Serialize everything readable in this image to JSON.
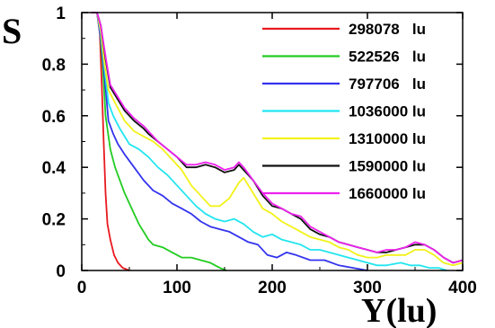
{
  "chart_data": {
    "type": "line",
    "title": "",
    "xlabel": "Y(lu)",
    "ylabel": "S",
    "xlim": [
      0,
      400
    ],
    "ylim": [
      0,
      1
    ],
    "x_ticks": [
      "0",
      "100",
      "200",
      "300",
      "400"
    ],
    "y_ticks": [
      "0",
      "0.2",
      "0.4",
      "0.6",
      "0.8",
      "1"
    ],
    "legend_position": "top-right",
    "grid": false,
    "series": [
      {
        "name": "298078   lu",
        "color": "#e8191f",
        "points": [
          [
            10,
            1
          ],
          [
            16,
            1
          ],
          [
            19,
            0.92
          ],
          [
            21,
            0.72
          ],
          [
            23,
            0.5
          ],
          [
            25,
            0.3
          ],
          [
            27,
            0.18
          ],
          [
            30,
            0.12
          ],
          [
            34,
            0.06
          ],
          [
            38,
            0.03
          ],
          [
            43,
            0.01
          ],
          [
            50,
            0
          ]
        ]
      },
      {
        "name": "522526   lu",
        "color": "#22cc22",
        "points": [
          [
            10,
            1
          ],
          [
            16,
            1
          ],
          [
            19,
            0.93
          ],
          [
            22,
            0.8
          ],
          [
            25,
            0.6
          ],
          [
            30,
            0.47
          ],
          [
            35,
            0.4
          ],
          [
            40,
            0.35
          ],
          [
            45,
            0.3
          ],
          [
            50,
            0.26
          ],
          [
            55,
            0.22
          ],
          [
            60,
            0.18
          ],
          [
            65,
            0.15
          ],
          [
            70,
            0.12
          ],
          [
            75,
            0.1
          ],
          [
            85,
            0.09
          ],
          [
            95,
            0.07
          ],
          [
            105,
            0.05
          ],
          [
            115,
            0.05
          ],
          [
            125,
            0.04
          ],
          [
            135,
            0.03
          ],
          [
            145,
            0.01
          ],
          [
            152,
            0
          ]
        ]
      },
      {
        "name": "797706   lu",
        "color": "#3333ee",
        "points": [
          [
            10,
            1
          ],
          [
            16,
            1
          ],
          [
            20,
            0.9
          ],
          [
            24,
            0.75
          ],
          [
            28,
            0.58
          ],
          [
            33,
            0.53
          ],
          [
            38,
            0.49
          ],
          [
            45,
            0.45
          ],
          [
            55,
            0.4
          ],
          [
            65,
            0.35
          ],
          [
            75,
            0.31
          ],
          [
            85,
            0.29
          ],
          [
            95,
            0.26
          ],
          [
            105,
            0.24
          ],
          [
            115,
            0.22
          ],
          [
            125,
            0.19
          ],
          [
            135,
            0.17
          ],
          [
            145,
            0.16
          ],
          [
            155,
            0.15
          ],
          [
            165,
            0.13
          ],
          [
            175,
            0.11
          ],
          [
            185,
            0.1
          ],
          [
            195,
            0.06
          ],
          [
            205,
            0.05
          ],
          [
            215,
            0.07
          ],
          [
            225,
            0.06
          ],
          [
            240,
            0.04
          ],
          [
            255,
            0.04
          ],
          [
            270,
            0.02
          ],
          [
            285,
            0.01
          ],
          [
            300,
            0
          ]
        ]
      },
      {
        "name": "1036000 lu",
        "color": "#22e5f0",
        "points": [
          [
            10,
            1
          ],
          [
            16,
            1
          ],
          [
            20,
            0.92
          ],
          [
            24,
            0.78
          ],
          [
            28,
            0.65
          ],
          [
            33,
            0.6
          ],
          [
            40,
            0.55
          ],
          [
            50,
            0.49
          ],
          [
            60,
            0.47
          ],
          [
            70,
            0.44
          ],
          [
            80,
            0.4
          ],
          [
            90,
            0.37
          ],
          [
            100,
            0.33
          ],
          [
            110,
            0.29
          ],
          [
            120,
            0.25
          ],
          [
            130,
            0.22
          ],
          [
            140,
            0.2
          ],
          [
            150,
            0.19
          ],
          [
            160,
            0.2
          ],
          [
            170,
            0.18
          ],
          [
            180,
            0.15
          ],
          [
            190,
            0.13
          ],
          [
            200,
            0.14
          ],
          [
            210,
            0.12
          ],
          [
            220,
            0.11
          ],
          [
            230,
            0.1
          ],
          [
            240,
            0.08
          ],
          [
            250,
            0.08
          ],
          [
            260,
            0.07
          ],
          [
            270,
            0.06
          ],
          [
            280,
            0.05
          ],
          [
            290,
            0.04
          ],
          [
            300,
            0.03
          ],
          [
            310,
            0.02
          ],
          [
            320,
            0.02
          ],
          [
            335,
            0.03
          ],
          [
            345,
            0.02
          ],
          [
            355,
            0.02
          ],
          [
            365,
            0.01
          ],
          [
            375,
            0.01
          ],
          [
            383,
            0
          ]
        ]
      },
      {
        "name": "1310000 lu",
        "color": "#f2f21a",
        "points": [
          [
            10,
            1
          ],
          [
            16,
            1
          ],
          [
            20,
            0.93
          ],
          [
            24,
            0.8
          ],
          [
            28,
            0.7
          ],
          [
            35,
            0.65
          ],
          [
            45,
            0.58
          ],
          [
            55,
            0.54
          ],
          [
            65,
            0.52
          ],
          [
            75,
            0.5
          ],
          [
            85,
            0.47
          ],
          [
            95,
            0.43
          ],
          [
            105,
            0.39
          ],
          [
            115,
            0.33
          ],
          [
            125,
            0.29
          ],
          [
            135,
            0.25
          ],
          [
            145,
            0.25
          ],
          [
            155,
            0.28
          ],
          [
            165,
            0.34
          ],
          [
            170,
            0.36
          ],
          [
            180,
            0.3
          ],
          [
            190,
            0.24
          ],
          [
            200,
            0.22
          ],
          [
            210,
            0.19
          ],
          [
            220,
            0.17
          ],
          [
            230,
            0.15
          ],
          [
            240,
            0.13
          ],
          [
            250,
            0.12
          ],
          [
            260,
            0.11
          ],
          [
            270,
            0.09
          ],
          [
            280,
            0.08
          ],
          [
            290,
            0.06
          ],
          [
            300,
            0.05
          ],
          [
            310,
            0.05
          ],
          [
            320,
            0.06
          ],
          [
            330,
            0.06
          ],
          [
            340,
            0.06
          ],
          [
            350,
            0.08
          ],
          [
            360,
            0.08
          ],
          [
            370,
            0.06
          ],
          [
            380,
            0.03
          ],
          [
            390,
            0.02
          ],
          [
            400,
            0.03
          ]
        ]
      },
      {
        "name": "1590000 lu",
        "color": "#111111",
        "points": [
          [
            10,
            1
          ],
          [
            16,
            1
          ],
          [
            20,
            0.95
          ],
          [
            25,
            0.82
          ],
          [
            30,
            0.71
          ],
          [
            35,
            0.68
          ],
          [
            45,
            0.62
          ],
          [
            55,
            0.58
          ],
          [
            65,
            0.55
          ],
          [
            70,
            0.53
          ],
          [
            80,
            0.5
          ],
          [
            90,
            0.47
          ],
          [
            100,
            0.44
          ],
          [
            110,
            0.4
          ],
          [
            120,
            0.4
          ],
          [
            130,
            0.41
          ],
          [
            140,
            0.4
          ],
          [
            150,
            0.38
          ],
          [
            160,
            0.39
          ],
          [
            165,
            0.41
          ],
          [
            170,
            0.39
          ],
          [
            180,
            0.35
          ],
          [
            190,
            0.29
          ],
          [
            200,
            0.25
          ],
          [
            210,
            0.24
          ],
          [
            220,
            0.22
          ],
          [
            230,
            0.2
          ],
          [
            240,
            0.16
          ],
          [
            250,
            0.14
          ],
          [
            260,
            0.13
          ],
          [
            270,
            0.11
          ],
          [
            280,
            0.1
          ],
          [
            290,
            0.09
          ],
          [
            300,
            0.08
          ],
          [
            310,
            0.07
          ],
          [
            320,
            0.07
          ],
          [
            330,
            0.08
          ],
          [
            340,
            0.09
          ],
          [
            350,
            0.1
          ],
          [
            360,
            0.1
          ],
          [
            370,
            0.08
          ],
          [
            380,
            0.05
          ],
          [
            390,
            0.03
          ],
          [
            400,
            0.04
          ]
        ]
      },
      {
        "name": "1660000 lu",
        "color": "#ee22ee",
        "points": [
          [
            10,
            1
          ],
          [
            16,
            1
          ],
          [
            20,
            0.95
          ],
          [
            25,
            0.83
          ],
          [
            30,
            0.72
          ],
          [
            35,
            0.69
          ],
          [
            45,
            0.63
          ],
          [
            55,
            0.59
          ],
          [
            65,
            0.56
          ],
          [
            70,
            0.54
          ],
          [
            80,
            0.5
          ],
          [
            90,
            0.47
          ],
          [
            100,
            0.44
          ],
          [
            110,
            0.41
          ],
          [
            120,
            0.41
          ],
          [
            130,
            0.42
          ],
          [
            140,
            0.41
          ],
          [
            150,
            0.39
          ],
          [
            160,
            0.4
          ],
          [
            165,
            0.42
          ],
          [
            170,
            0.4
          ],
          [
            180,
            0.35
          ],
          [
            190,
            0.3
          ],
          [
            200,
            0.26
          ],
          [
            210,
            0.24
          ],
          [
            220,
            0.22
          ],
          [
            230,
            0.21
          ],
          [
            240,
            0.17
          ],
          [
            250,
            0.15
          ],
          [
            260,
            0.13
          ],
          [
            270,
            0.11
          ],
          [
            280,
            0.1
          ],
          [
            290,
            0.09
          ],
          [
            300,
            0.08
          ],
          [
            310,
            0.07
          ],
          [
            320,
            0.08
          ],
          [
            330,
            0.08
          ],
          [
            340,
            0.09
          ],
          [
            350,
            0.11
          ],
          [
            360,
            0.1
          ],
          [
            370,
            0.08
          ],
          [
            380,
            0.05
          ],
          [
            390,
            0.03
          ],
          [
            400,
            0.04
          ]
        ]
      }
    ]
  }
}
